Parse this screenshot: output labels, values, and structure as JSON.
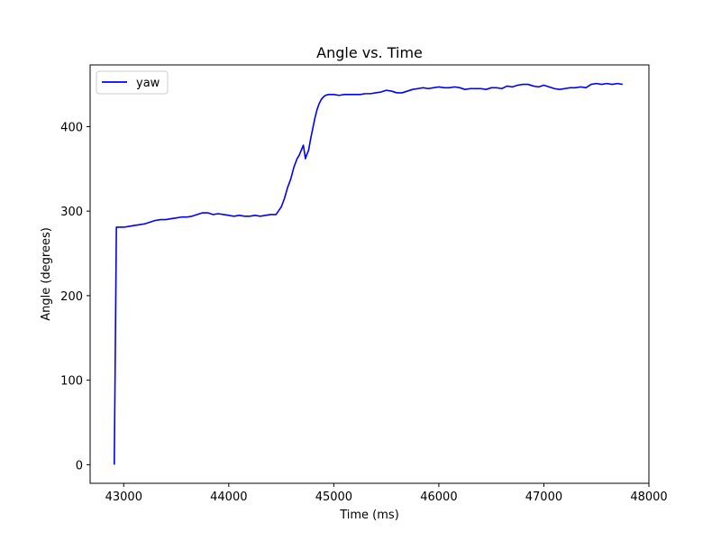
{
  "chart_data": {
    "type": "line",
    "title": "Angle vs. Time",
    "xlabel": "Time (ms)",
    "ylabel": "Angle (degrees)",
    "xlim": [
      42680,
      48000
    ],
    "ylim": [
      -22,
      473
    ],
    "xticks": [
      43000,
      44000,
      45000,
      46000,
      47000,
      48000
    ],
    "yticks": [
      0,
      100,
      200,
      300,
      400
    ],
    "grid": false,
    "legend_position": "upper-left",
    "series": [
      {
        "name": "yaw",
        "color": "#0000ff",
        "x": [
          42910,
          42930,
          42960,
          43000,
          43050,
          43100,
          43150,
          43200,
          43250,
          43300,
          43350,
          43400,
          43450,
          43500,
          43550,
          43600,
          43650,
          43700,
          43750,
          43800,
          43850,
          43900,
          43950,
          44000,
          44050,
          44100,
          44150,
          44200,
          44250,
          44300,
          44350,
          44400,
          44450,
          44500,
          44530,
          44560,
          44590,
          44620,
          44650,
          44670,
          44690,
          44710,
          44720,
          44730,
          44740,
          44760,
          44780,
          44800,
          44820,
          44840,
          44860,
          44880,
          44900,
          44920,
          44950,
          44980,
          45000,
          45050,
          45100,
          45150,
          45200,
          45250,
          45300,
          45350,
          45400,
          45450,
          45500,
          45550,
          45600,
          45650,
          45700,
          45750,
          45800,
          45850,
          45900,
          45950,
          46000,
          46050,
          46100,
          46150,
          46200,
          46250,
          46300,
          46350,
          46400,
          46450,
          46500,
          46550,
          46600,
          46650,
          46700,
          46750,
          46800,
          46850,
          46900,
          46950,
          47000,
          47050,
          47100,
          47150,
          47200,
          47250,
          47300,
          47350,
          47400,
          47450,
          47500,
          47550,
          47600,
          47650,
          47700,
          47750
        ],
        "y": [
          0,
          281,
          281,
          281,
          282,
          283,
          284,
          285,
          287,
          289,
          290,
          290,
          291,
          292,
          293,
          293,
          294,
          296,
          298,
          298,
          296,
          297,
          296,
          295,
          294,
          295,
          294,
          294,
          295,
          294,
          295,
          296,
          296,
          305,
          315,
          328,
          338,
          352,
          362,
          366,
          372,
          378,
          370,
          362,
          366,
          372,
          386,
          398,
          410,
          420,
          427,
          432,
          435,
          437,
          438,
          438,
          438,
          437,
          438,
          438,
          438,
          438,
          439,
          439,
          440,
          441,
          443,
          442,
          440,
          440,
          442,
          444,
          445,
          446,
          445,
          446,
          447,
          446,
          446,
          447,
          446,
          444,
          445,
          445,
          445,
          444,
          446,
          446,
          445,
          448,
          447,
          449,
          450,
          450,
          448,
          447,
          449,
          447,
          445,
          444,
          445,
          446,
          446,
          447,
          446,
          450,
          451,
          450,
          451,
          450,
          451,
          450
        ]
      }
    ]
  }
}
